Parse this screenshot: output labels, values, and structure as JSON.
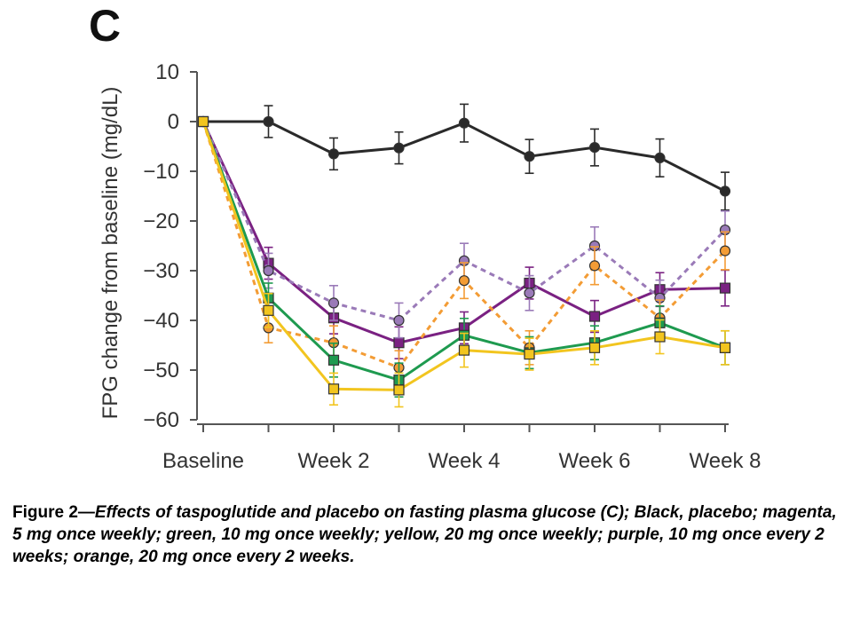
{
  "chart_data": {
    "type": "line",
    "panel_label": "C",
    "ylabel": "FPG change from baseline (mg/dL)",
    "xlabel": "",
    "ylim": [
      -60,
      10
    ],
    "yticks": [
      10,
      0,
      -10,
      -20,
      -30,
      -40,
      -50,
      -60
    ],
    "ytick_labels": [
      "10",
      "0",
      "−10",
      "−20",
      "−30",
      "−40",
      "−50",
      "−60"
    ],
    "x": [
      0,
      1,
      2,
      3,
      4,
      5,
      6,
      7,
      8
    ],
    "xtick_labels": [
      "Baseline",
      "Week 2",
      "Week 4",
      "Week 6",
      "Week 8"
    ],
    "xtick_label_positions": [
      0,
      2,
      4,
      6,
      8
    ],
    "grid": false,
    "series": [
      {
        "color": "#2a2a2a",
        "dash": "solid",
        "marker": "circle",
        "values": [
          0,
          0,
          -6.5,
          -5.3,
          -0.3,
          -7,
          -5.2,
          -7.3,
          -14
        ],
        "errors": [
          0,
          3.2,
          3.2,
          3.2,
          3.8,
          3.4,
          3.7,
          3.8,
          3.8
        ]
      },
      {
        "color": "#7a2182",
        "dash": "solid",
        "marker": "square",
        "values": [
          0,
          -28.5,
          -39.5,
          -44.5,
          -41.5,
          -32.5,
          -39.2,
          -33.8,
          -33.5
        ],
        "errors": [
          0,
          3.2,
          3.2,
          3.2,
          3.2,
          3.2,
          3.2,
          3.4,
          3.6
        ]
      },
      {
        "color": "#9a7ab8",
        "dash": "dashed",
        "marker": "circle",
        "values": [
          0,
          -30,
          -36.5,
          -40,
          -28,
          -34.5,
          -25,
          -35.5,
          -21.8
        ],
        "errors": [
          0,
          3.5,
          3.5,
          3.5,
          3.5,
          3.5,
          3.8,
          3.6,
          3.8
        ]
      },
      {
        "color": "#f39c35",
        "dash": "dashed",
        "marker": "circle",
        "values": [
          0,
          -41.5,
          -44.5,
          -49.5,
          -32,
          -45.5,
          -29,
          -39.5,
          -26
        ],
        "errors": [
          0,
          3,
          3.4,
          3.4,
          3.6,
          3.4,
          3.8,
          3.6,
          3.8
        ]
      },
      {
        "color": "#1e9a4f",
        "dash": "solid",
        "marker": "square",
        "values": [
          0,
          -35.5,
          -48,
          -52,
          -43,
          -46.5,
          -44.5,
          -40.5,
          -45.5
        ],
        "errors": [
          0,
          3,
          3.4,
          3.4,
          3.4,
          3.2,
          3.4,
          3.4,
          3.4
        ]
      },
      {
        "color": "#f2c51f",
        "dash": "solid",
        "marker": "square",
        "values": [
          0,
          -38,
          -53.8,
          -54,
          -46,
          -46.8,
          -45.5,
          -43.3,
          -45.5
        ],
        "errors": [
          0,
          3.4,
          3.2,
          3.4,
          3.4,
          3.2,
          3.4,
          3.4,
          3.4
        ]
      }
    ]
  },
  "caption": {
    "prefix": "Figure 2—",
    "body": "Effects of taspoglutide and placebo on fasting plasma glucose (C); Black, placebo; magenta, 5 mg once weekly; green, 10 mg once weekly; yellow, 20 mg once weekly; purple, 10 mg once every 2 weeks; orange, 20 mg once every 2 weeks."
  }
}
